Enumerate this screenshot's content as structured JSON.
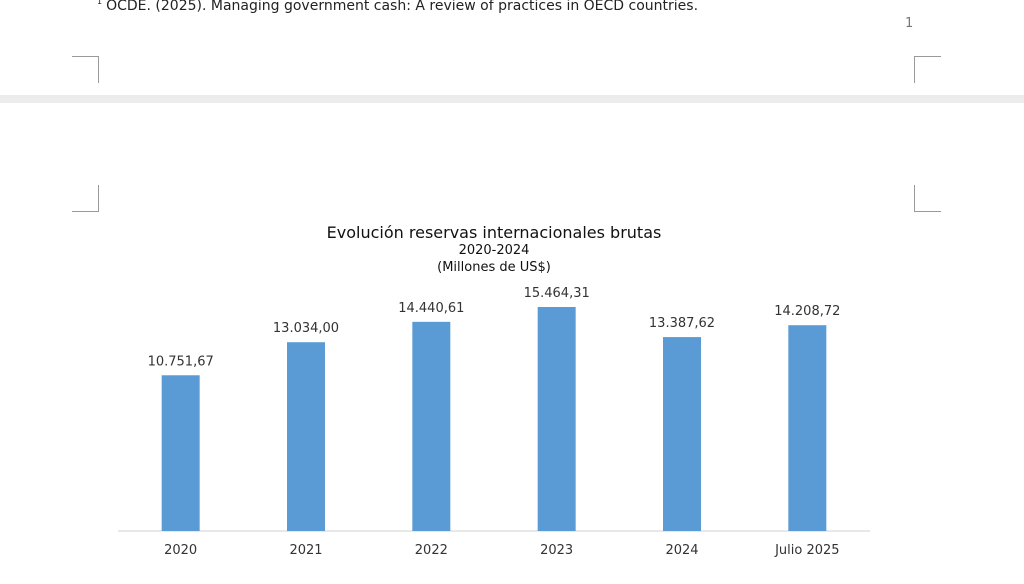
{
  "footnote": {
    "marker": "1",
    "text": "OCDE. (2025). Managing government cash: A review of practices in OECD countries."
  },
  "page": {
    "number": "1"
  },
  "chart_data": {
    "type": "bar",
    "title": "Evolución reservas internacionales brutas",
    "subtitle_lines": [
      "2020-2024",
      "(Millones de US$)"
    ],
    "categories": [
      "2020",
      "2021",
      "2022",
      "2023",
      "2024",
      "Julio 2025"
    ],
    "values": [
      10751.67,
      13034.0,
      14440.61,
      15464.31,
      13387.62,
      14208.72
    ],
    "value_labels": [
      "10.751,67",
      "13.034,00",
      "14.440,61",
      "15.464,31",
      "13.387,62",
      "14.208,72"
    ],
    "ylim": [
      0,
      16500
    ],
    "grid": false,
    "legend": "none",
    "bar_color": "#5b9bd5",
    "xlabel": "",
    "ylabel": ""
  }
}
